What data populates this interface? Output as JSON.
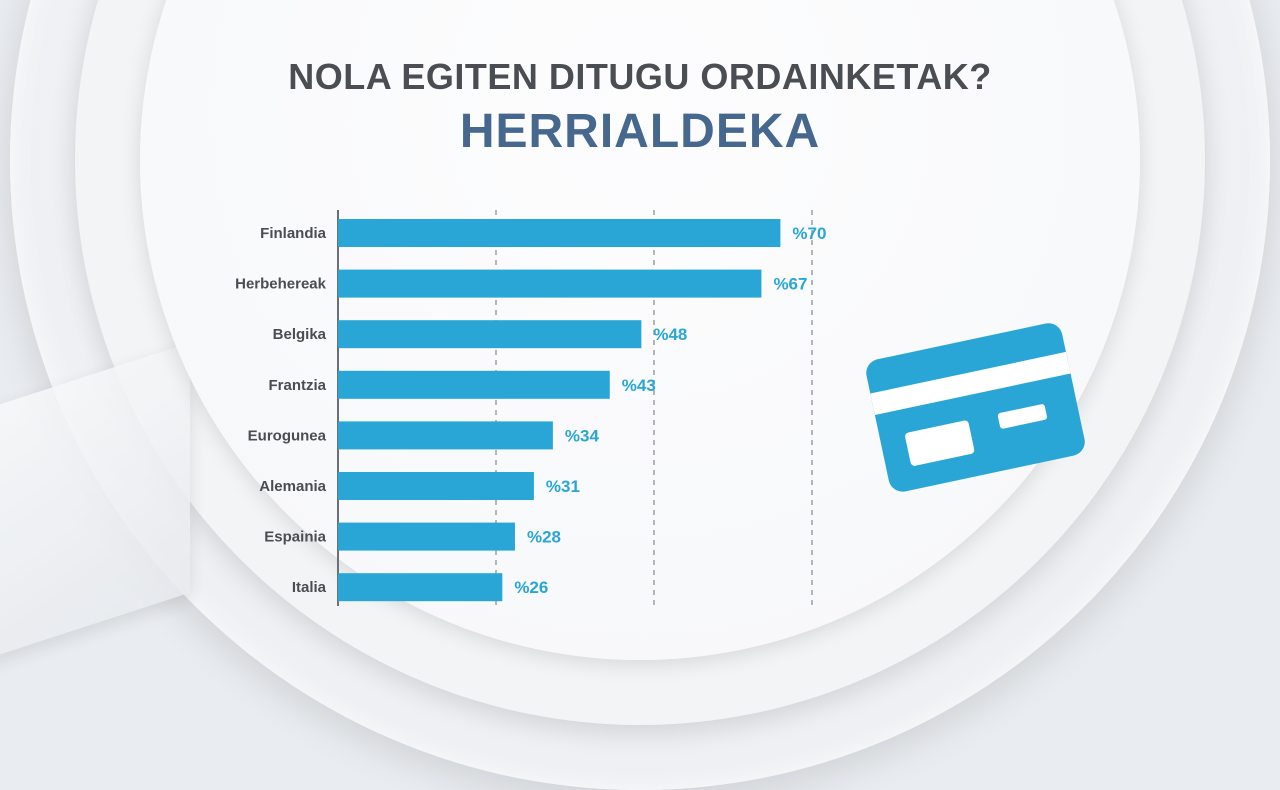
{
  "title": "NOLA EGITEN DITUGU ORDAINKETAK?",
  "subtitle": "HERRIALDEKA",
  "colors": {
    "bar": "#2aa6d6",
    "value_label": "#2aa6d6",
    "category_label": "#4a4d52",
    "title": "#4a4d52",
    "subtitle": "#46688f",
    "gridline": "#9aa0a6",
    "axis": "#6b7076"
  },
  "icon": "credit-card-icon",
  "chart_data": {
    "type": "bar",
    "orientation": "horizontal",
    "title": "NOLA EGITEN DITUGU ORDAINKETAK?",
    "subtitle": "HERRIALDEKA",
    "categories": [
      "Finlandia",
      "Herbehereak",
      "Belgika",
      "Frantzia",
      "Eurogunea",
      "Alemania",
      "Espainia",
      "Italia"
    ],
    "values": [
      70,
      67,
      48,
      43,
      34,
      31,
      28,
      26
    ],
    "value_labels": [
      "%70",
      "%67",
      "%48",
      "%43",
      "%34",
      "%31",
      "%28",
      "%26"
    ],
    "xlim": [
      0,
      75
    ],
    "gridlines_at": [
      25,
      50,
      75
    ],
    "grid": "dashed vertical",
    "legend": "none"
  }
}
